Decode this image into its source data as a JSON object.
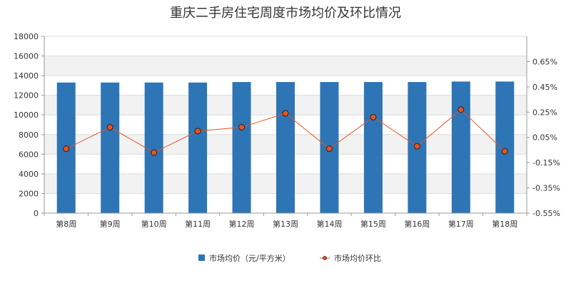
{
  "chart_data": {
    "type": "bar",
    "title": "重庆二手房住宅周度市场均价及环比情况",
    "categories": [
      "第8周",
      "第9周",
      "第10周",
      "第11周",
      "第12周",
      "第13周",
      "第14周",
      "第15周",
      "第16周",
      "第17周",
      "第18周"
    ],
    "series": [
      {
        "name": "市场均价（元/平方米）",
        "type": "bar",
        "axis": "left",
        "values": [
          13300,
          13300,
          13300,
          13300,
          13350,
          13350,
          13350,
          13350,
          13350,
          13400,
          13400
        ]
      },
      {
        "name": "市场均价环比",
        "type": "line",
        "axis": "right",
        "values": [
          -0.04,
          0.13,
          -0.07,
          0.1,
          0.13,
          0.24,
          -0.04,
          0.21,
          -0.02,
          0.27,
          -0.06
        ]
      }
    ],
    "y_left": {
      "range": [
        0,
        18000
      ],
      "ticks": [
        "0",
        "2000",
        "4000",
        "6000",
        "8000",
        "10000",
        "12000",
        "14000",
        "16000",
        "18000"
      ]
    },
    "y_right": {
      "range": [
        -0.55,
        0.85
      ],
      "ticks": [
        "-0.55%",
        "-0.35%",
        "-0.15%",
        "0.05%",
        "0.25%",
        "0.45%",
        "0.65%"
      ]
    },
    "grid": true,
    "legend_position": "bottom",
    "colors": {
      "bar": "#2e75b6",
      "line": "#e8541c",
      "marker_fill": "#e8541c",
      "marker_stroke": "#222222",
      "grid_band": "#f2f2f2"
    }
  }
}
